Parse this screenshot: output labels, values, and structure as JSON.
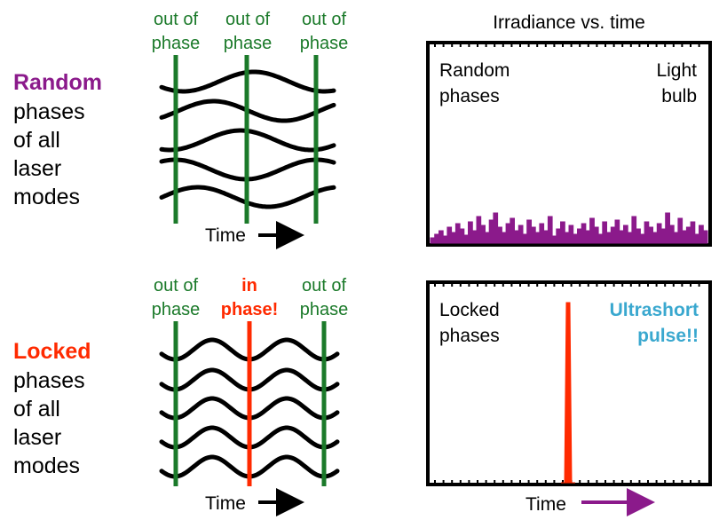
{
  "title": "Irradiance vs. time",
  "colors": {
    "random": "#8b1a8b",
    "locked": "#ff2a00",
    "out_of_phase": "#1b7a2a",
    "ultrashort": "#3aa8cf",
    "wave": "#000000",
    "time_arrow_top": "#000000",
    "time_arrow_bottom": "#8b1a8b"
  },
  "top_row": {
    "heading": "Random",
    "lines": [
      "phases",
      "of all",
      "laser",
      "modes"
    ],
    "markers": [
      {
        "line1": "out of",
        "line2": "phase"
      },
      {
        "line1": "out of",
        "line2": "phase"
      },
      {
        "line1": "out of",
        "line2": "phase"
      }
    ],
    "time_label": "Time",
    "plot": {
      "left_label": [
        "Random",
        "phases"
      ],
      "right_label": [
        "Light",
        "bulb"
      ]
    }
  },
  "bottom_row": {
    "heading": "Locked",
    "lines": [
      "phases",
      "of all",
      "laser",
      "modes"
    ],
    "markers": [
      {
        "line1": "out of",
        "line2": "phase"
      },
      {
        "line1": "in",
        "line2": "phase!"
      },
      {
        "line1": "out of",
        "line2": "phase"
      }
    ],
    "time_label": "Time",
    "plot": {
      "left_label": [
        "Locked",
        "phases"
      ],
      "right_label": [
        "Ultrashort",
        "pulse!!"
      ]
    },
    "axis_label": "Time"
  }
}
